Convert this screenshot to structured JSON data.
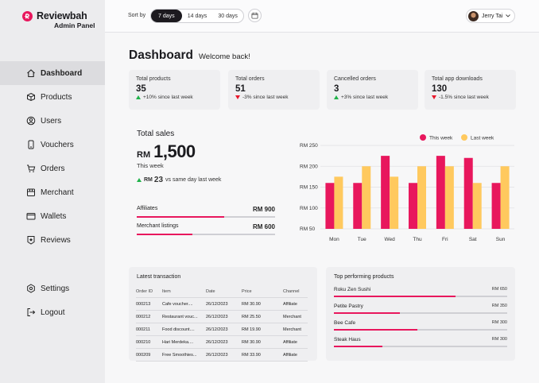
{
  "brand": {
    "title": "Reviewbah",
    "subtitle": "Admin Panel",
    "color": "#e8175d"
  },
  "sidebar": {
    "items": [
      {
        "label": "Dashboard",
        "icon": "home-icon",
        "active": true
      },
      {
        "label": "Products",
        "icon": "box-icon"
      },
      {
        "label": "Users",
        "icon": "user-icon"
      },
      {
        "label": "Vouchers",
        "icon": "ticket-icon"
      },
      {
        "label": "Orders",
        "icon": "cart-icon"
      },
      {
        "label": "Merchant",
        "icon": "store-icon"
      },
      {
        "label": "Wallets",
        "icon": "wallet-icon"
      },
      {
        "label": "Reviews",
        "icon": "star-badge-icon"
      }
    ],
    "bottom": [
      {
        "label": "Settings",
        "icon": "gear-icon"
      },
      {
        "label": "Logout",
        "icon": "logout-icon"
      }
    ]
  },
  "topbar": {
    "sort_label": "Sort by",
    "options": [
      "7 days",
      "14 days",
      "30 days"
    ],
    "selected": "7 days",
    "user_name": "Jerry Tai"
  },
  "page": {
    "title": "Dashboard",
    "welcome": "Welcome back!"
  },
  "stats": [
    {
      "label": "Total products",
      "value": "35",
      "trend": "+10% since last week",
      "direction": "up"
    },
    {
      "label": "Total orders",
      "value": "51",
      "trend": "-3% since last week",
      "direction": "down"
    },
    {
      "label": "Cancelled orders",
      "value": "3",
      "trend": "+3% since last week",
      "direction": "up"
    },
    {
      "label": "Total app downloads",
      "value": "130",
      "trend": "-1.5% since last week",
      "direction": "down"
    }
  ],
  "sales": {
    "title": "Total sales",
    "currency": "RM",
    "amount": "1,500",
    "period": "This week",
    "compare_currency": "RM",
    "compare_value": "23",
    "compare_text": "vs same day last week",
    "metrics": [
      {
        "label": "Affiliates",
        "value": "RM 900",
        "progress": 0.63
      },
      {
        "label": "Merchant listings",
        "value": "RM 600",
        "progress": 0.4
      }
    ]
  },
  "chart_data": {
    "type": "bar",
    "categories": [
      "Mon",
      "Tue",
      "Wed",
      "Thu",
      "Fri",
      "Sat",
      "Sun"
    ],
    "series": [
      {
        "name": "This week",
        "color": "#e8175d",
        "values": [
          160,
          160,
          225,
          160,
          225,
          220,
          160
        ]
      },
      {
        "name": "Last week",
        "color": "#ffc95e",
        "values": [
          175,
          200,
          175,
          200,
          200,
          160,
          200
        ]
      }
    ],
    "ylim": [
      50,
      250
    ],
    "yticks": [
      "RM 250",
      "RM 200",
      "RM 150",
      "RM 100",
      "RM 50"
    ],
    "legend": "top-right",
    "grid": true
  },
  "transactions": {
    "title": "Latest transaction",
    "columns": [
      "Order ID",
      "Item",
      "Date",
      "Price",
      "Channel"
    ],
    "rows": [
      [
        "000213",
        "Cafe voucher....",
        "26/12/2023",
        "RM 30.90",
        "Affiliate"
      ],
      [
        "000212",
        "Restaurant vouc...",
        "26/12/2023",
        "RM 25.50",
        "Merchant"
      ],
      [
        "000211",
        "Food discount....",
        "26/12/2023",
        "RM 19.90",
        "Merchant"
      ],
      [
        "000210",
        "Hari Merdeka....",
        "26/12/2023",
        "RM 30.90",
        "Affiliate"
      ],
      [
        "000209",
        "Free Smoothies...",
        "26/12/2023",
        "RM 33.90",
        "Affiliate"
      ]
    ]
  },
  "top_products": {
    "title": "Top performing products",
    "items": [
      {
        "name": "Roku Zen Sushi",
        "value": "RM 650",
        "progress": 0.7
      },
      {
        "name": "Petite Pastry",
        "value": "RM 350",
        "progress": 0.38
      },
      {
        "name": "Bee Cafe",
        "value": "RM 300",
        "progress": 0.48
      },
      {
        "name": "Steak Haus",
        "value": "RM 300",
        "progress": 0.28
      }
    ]
  }
}
